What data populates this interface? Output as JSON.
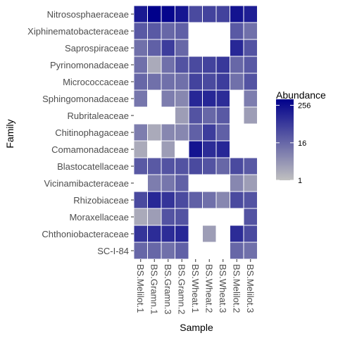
{
  "chart_data": {
    "type": "heatmap",
    "title": "",
    "xlabel": "Sample",
    "ylabel": "Family",
    "x_categories": [
      "BS.Melilot.1",
      "BS.Gramn.1",
      "BS.Gramn.3",
      "BS.Gramn.2",
      "BS.Wheat.1",
      "BS.Wheat.2",
      "BS.Wheat.3",
      "BS.Melilot.2",
      "BS.Melilot.3"
    ],
    "y_categories": [
      "Nitrososphaeraceae",
      "Xiphinematobacteraceae",
      "Saprospiraceae",
      "Pyrinomonadaceae",
      "Micrococcaceae",
      "Sphingomonadaceae",
      "Rubritaleaceae",
      "Chitinophagaceae",
      "Comamonadaceae",
      "Blastocatellaceae",
      "Vicinamibacteraceae",
      "Rhizobiaceae",
      "Moraxellaceae",
      "Chthoniobacteraceae",
      "SC-I-84"
    ],
    "values": [
      [
        180,
        400,
        330,
        200,
        40,
        50,
        50,
        220,
        150
      ],
      [
        25,
        25,
        16,
        20,
        null,
        null,
        null,
        25,
        12
      ],
      [
        12,
        20,
        60,
        16,
        null,
        null,
        null,
        120,
        30
      ],
      [
        12,
        2,
        12,
        30,
        40,
        50,
        70,
        16,
        25
      ],
      [
        16,
        12,
        12,
        12,
        50,
        40,
        60,
        12,
        30
      ],
      [
        10,
        null,
        8,
        6,
        120,
        120,
        100,
        null,
        8
      ],
      [
        null,
        null,
        null,
        3,
        30,
        16,
        25,
        null,
        3
      ],
      [
        8,
        2,
        6,
        6,
        20,
        60,
        20,
        null,
        null
      ],
      [
        2,
        null,
        3,
        null,
        220,
        100,
        120,
        null,
        null
      ],
      [
        25,
        25,
        30,
        30,
        40,
        30,
        16,
        40,
        25
      ],
      [
        null,
        8,
        10,
        20,
        null,
        null,
        null,
        6,
        3
      ],
      [
        40,
        120,
        80,
        40,
        20,
        12,
        6,
        40,
        30
      ],
      [
        2,
        3,
        30,
        30,
        null,
        null,
        null,
        null,
        30
      ],
      [
        80,
        100,
        100,
        120,
        null,
        3,
        null,
        100,
        40
      ],
      [
        16,
        16,
        12,
        20,
        null,
        null,
        null,
        16,
        12
      ]
    ],
    "color_scale": {
      "type": "log",
      "min": 1,
      "max": 400,
      "low_color": "#c0c0c0",
      "high_color": "#00008b"
    },
    "legend": {
      "title": "Abundance",
      "ticks": [
        1,
        16,
        256
      ],
      "tick_labels": [
        "1",
        "16",
        "256"
      ],
      "position": "right"
    },
    "grid": false
  }
}
